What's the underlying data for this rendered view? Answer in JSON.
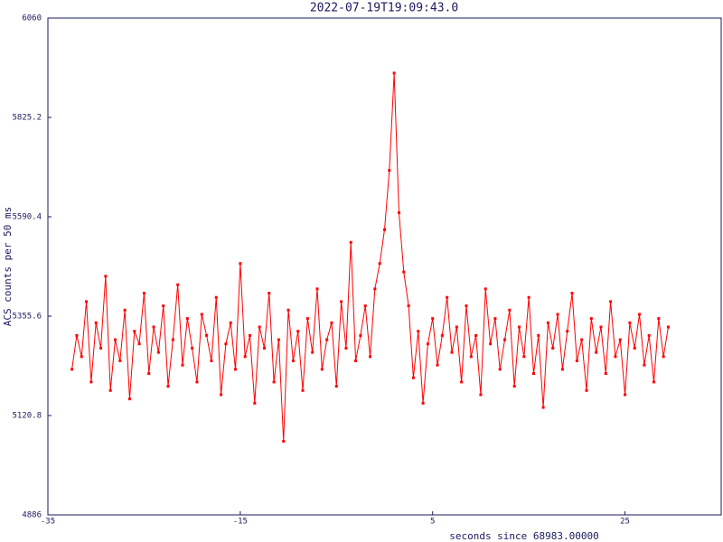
{
  "chart_data": {
    "type": "line",
    "title": "2022-07-19T19:09:43.0",
    "xlabel": "seconds since 68983.00000",
    "ylabel": "ACS counts per 50 ms",
    "color": "#ff0000",
    "xlim": [
      -35,
      35
    ],
    "xticks": [
      -35,
      -15,
      5,
      25
    ],
    "ylim": [
      4886,
      6060
    ],
    "yticks": [
      4886,
      5120.8,
      5355.6,
      5590.4,
      5825.2,
      6060
    ],
    "x": [
      -32.5,
      -32,
      -31.5,
      -31,
      -30.5,
      -30,
      -29.5,
      -29,
      -28.5,
      -28,
      -27.5,
      -27,
      -26.5,
      -26,
      -25.5,
      -25,
      -24.5,
      -24,
      -23.5,
      -23,
      -22.5,
      -22,
      -21.5,
      -21,
      -20.5,
      -20,
      -19.5,
      -19,
      -18.5,
      -18,
      -17.5,
      -17,
      -16.5,
      -16,
      -15.5,
      -15,
      -14.5,
      -14,
      -13.5,
      -13,
      -12.5,
      -12,
      -11.5,
      -11,
      -10.5,
      -10,
      -9.5,
      -9,
      -8.5,
      -8,
      -7.5,
      -7,
      -6.5,
      -6,
      -5.5,
      -5,
      -4.5,
      -4,
      -3.5,
      -3,
      -2.5,
      -2,
      -1.5,
      -1,
      -0.5,
      0,
      0.5,
      1,
      1.5,
      2,
      2.5,
      3,
      3.5,
      4,
      4.5,
      5,
      5.5,
      6,
      6.5,
      7,
      7.5,
      8,
      8.5,
      9,
      9.5,
      10,
      10.5,
      11,
      11.5,
      12,
      12.5,
      13,
      13.5,
      14,
      14.5,
      15,
      15.5,
      16,
      16.5,
      17,
      17.5,
      18,
      18.5,
      19,
      19.5,
      20,
      20.5,
      21,
      21.5,
      22,
      22.5,
      23,
      23.5,
      24,
      24.5,
      25,
      25.5,
      26,
      26.5,
      27,
      27.5,
      28,
      28.5,
      29,
      29.5
    ],
    "values": [
      5230,
      5310,
      5260,
      5390,
      5200,
      5340,
      5280,
      5450,
      5180,
      5300,
      5250,
      5370,
      5160,
      5320,
      5290,
      5410,
      5220,
      5330,
      5270,
      5380,
      5190,
      5300,
      5430,
      5240,
      5350,
      5280,
      5200,
      5360,
      5310,
      5250,
      5400,
      5170,
      5290,
      5340,
      5230,
      5480,
      5260,
      5310,
      5150,
      5330,
      5280,
      5410,
      5200,
      5300,
      5060,
      5370,
      5250,
      5320,
      5180,
      5350,
      5270,
      5420,
      5230,
      5300,
      5340,
      5190,
      5390,
      5280,
      5530,
      5250,
      5310,
      5380,
      5260,
      5420,
      5480,
      5560,
      5700,
      5930,
      5600,
      5460,
      5380,
      5210,
      5320,
      5150,
      5290,
      5350,
      5240,
      5310,
      5400,
      5270,
      5330,
      5200,
      5380,
      5260,
      5310,
      5170,
      5420,
      5290,
      5350,
      5230,
      5300,
      5370,
      5190,
      5330,
      5260,
      5400,
      5220,
      5310,
      5140,
      5340,
      5280,
      5360,
      5230,
      5320,
      5410,
      5250,
      5300,
      5180,
      5350,
      5270,
      5330,
      5220,
      5390,
      5260,
      5300,
      5170,
      5340,
      5280,
      5360,
      5240,
      5310,
      5200,
      5350,
      5260,
      5330
    ]
  }
}
